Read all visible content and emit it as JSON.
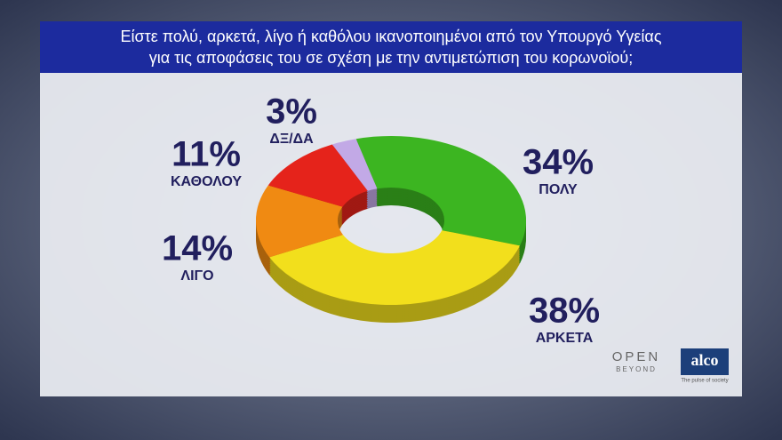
{
  "chart_data": {
    "type": "pie",
    "title": [
      "Είστε πολύ, αρκετά, λίγο ή καθόλου ικανοποιημένοι από τον Υπουργό Υγείας",
      "για τις αποφάσεις του σε σχέση με την αντιμετώπιση του κορωνοϊού;"
    ],
    "categories": [
      "ΠΟΛΥ",
      "ΑΡΚΕΤΑ",
      "ΛΙΓΟ",
      "ΚΑΘΟΛΟΥ",
      "ΔΞ/ΔΑ"
    ],
    "values": [
      34,
      38,
      14,
      11,
      3
    ],
    "value_labels": [
      "34%",
      "38%",
      "14%",
      "11%",
      "3%"
    ],
    "colors": [
      "#3cb521",
      "#f2df1c",
      "#f08a12",
      "#e5231b",
      "#c2a9e6"
    ]
  },
  "logos": {
    "open": "OPEN",
    "open_sub": "BEYOND",
    "alco": "alco",
    "alco_sub": "The pulse of society"
  }
}
